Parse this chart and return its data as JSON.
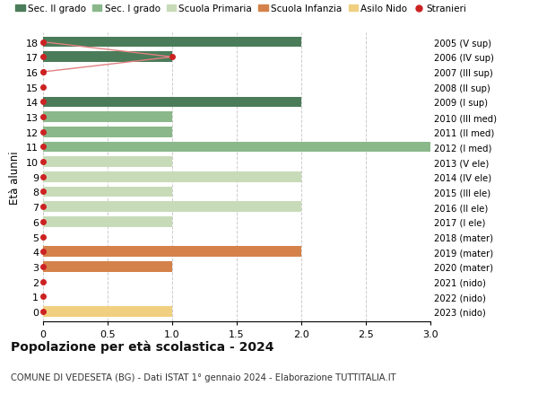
{
  "ages": [
    0,
    1,
    2,
    3,
    4,
    5,
    6,
    7,
    8,
    9,
    10,
    11,
    12,
    13,
    14,
    15,
    16,
    17,
    18
  ],
  "right_labels": [
    "2023 (nido)",
    "2022 (nido)",
    "2021 (nido)",
    "2020 (mater)",
    "2019 (mater)",
    "2018 (mater)",
    "2017 (I ele)",
    "2016 (II ele)",
    "2015 (III ele)",
    "2014 (IV ele)",
    "2013 (V ele)",
    "2012 (I med)",
    "2011 (II med)",
    "2010 (III med)",
    "2009 (I sup)",
    "2008 (II sup)",
    "2007 (III sup)",
    "2006 (IV sup)",
    "2005 (V sup)"
  ],
  "sec2_values": [
    0,
    0,
    0,
    0,
    0,
    0,
    0,
    0,
    0,
    0,
    0,
    0,
    0,
    0,
    2,
    0,
    0,
    1,
    2
  ],
  "sec1_values": [
    0,
    0,
    0,
    0,
    0,
    0,
    0,
    0,
    0,
    0,
    0,
    3,
    1,
    1,
    0,
    0,
    0,
    0,
    0
  ],
  "primaria_values": [
    0,
    0,
    0,
    0,
    0,
    0,
    1,
    2,
    1,
    2,
    1,
    0,
    0,
    0,
    0,
    0,
    0,
    0,
    0
  ],
  "infanzia_values": [
    0,
    0,
    0,
    1,
    2,
    0,
    0,
    0,
    0,
    0,
    0,
    0,
    0,
    0,
    0,
    0,
    0,
    0,
    0
  ],
  "nido_values": [
    1,
    0,
    0,
    0,
    0,
    0,
    0,
    0,
    0,
    0,
    0,
    0,
    0,
    0,
    0,
    0,
    0,
    0,
    0
  ],
  "stranieri_line_ages": [
    16,
    17,
    18
  ],
  "stranieri_line_vals": [
    0,
    1,
    0
  ],
  "color_sec2": "#4a7c59",
  "color_sec1": "#8ab88a",
  "color_primaria": "#c8dbb8",
  "color_infanzia": "#d4824a",
  "color_nido": "#f0d080",
  "color_stranieri": "#cc2222",
  "color_line_stranieri": "#e08080",
  "bar_height": 0.7,
  "xlim": [
    0,
    3.0
  ],
  "ylabel": "Età alunni",
  "title": "Popolazione per età scolastica - 2024",
  "subtitle": "COMUNE DI VEDESETA (BG) - Dati ISTAT 1° gennaio 2024 - Elaborazione TUTTITALIA.IT",
  "legend_labels": [
    "Sec. II grado",
    "Sec. I grado",
    "Scuola Primaria",
    "Scuola Infanzia",
    "Asilo Nido",
    "Stranieri"
  ],
  "xticks": [
    0,
    0.5,
    1.0,
    1.5,
    2.0,
    2.5,
    3.0
  ],
  "figsize": [
    6.0,
    4.6
  ],
  "dpi": 100
}
